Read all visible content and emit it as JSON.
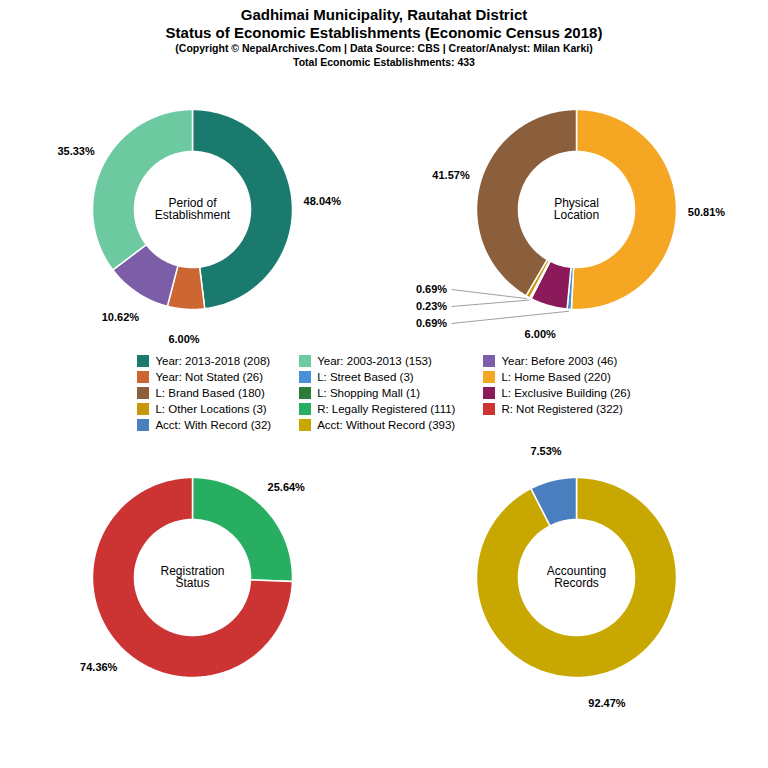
{
  "title": "Gadhimai Municipality, Rautahat District\nStatus of Economic Establishments (Economic Census 2018)",
  "subtitle": "(Copyright © NepalArchives.Com | Data Source: CBS | Creator/Analyst: Milan Karki)\nTotal Economic Establishments: 433",
  "legend_items": [
    {
      "label": "Year: 2013-2018 (208)",
      "color": "#1a7a6e"
    },
    {
      "label": "Year: Not Stated (26)",
      "color": "#cc6633"
    },
    {
      "label": "L: Brand Based (180)",
      "color": "#8b5e3c"
    },
    {
      "label": "L: Other Locations (3)",
      "color": "#c8960c"
    },
    {
      "label": "Acct: With Record (32)",
      "color": "#4a7fbf"
    },
    {
      "label": "Year: 2003-2013 (153)",
      "color": "#6dc9a0"
    },
    {
      "label": "L: Street Based (3)",
      "color": "#4a90d9"
    },
    {
      "label": "L: Shopping Mall (1)",
      "color": "#2d7d3a"
    },
    {
      "label": "R: Legally Registered (111)",
      "color": "#27ae60"
    },
    {
      "label": "Acct: Without Record (393)",
      "color": "#c8a800"
    },
    {
      "label": "Year: Before 2003 (46)",
      "color": "#7b5ea7"
    },
    {
      "label": "L: Home Based (220)",
      "color": "#f5a623"
    },
    {
      "label": "L: Exclusive Building (26)",
      "color": "#8b1a5a"
    },
    {
      "label": "R: Not Registered (322)",
      "color": "#cc3333"
    }
  ],
  "chart_data": [
    {
      "type": "pie",
      "title": "Period of\nEstablishment",
      "values": [
        48.04,
        6.0,
        10.62,
        35.33
      ],
      "value_labels": [
        "48.04%",
        "6.00%",
        "10.62%",
        "35.33%"
      ],
      "colors": [
        "#1a7a6e",
        "#cc6633",
        "#7b5ea7",
        "#6dc9a0"
      ],
      "data_labels": true
    },
    {
      "type": "pie",
      "title": "Physical\nLocation",
      "values": [
        50.81,
        0.69,
        6.0,
        0.23,
        0.69,
        41.57
      ],
      "value_labels": [
        "50.81%",
        "0.69%",
        "6.00%",
        "0.23%",
        "0.69%",
        "41.57%"
      ],
      "colors": [
        "#f5a623",
        "#4a90d9",
        "#8b1a5a",
        "#2d7d3a",
        "#c8960c",
        "#8b5e3c"
      ],
      "data_labels": true
    },
    {
      "type": "pie",
      "title": "Registration\nStatus",
      "values": [
        25.64,
        74.36
      ],
      "value_labels": [
        "25.64%",
        "74.36%"
      ],
      "colors": [
        "#27ae60",
        "#cc3333"
      ],
      "data_labels": true
    },
    {
      "type": "pie",
      "title": "Accounting\nRecords",
      "values": [
        92.47,
        7.53
      ],
      "value_labels": [
        "92.47%",
        "7.53%"
      ],
      "colors": [
        "#c8a800",
        "#4a7fbf"
      ],
      "data_labels": true
    }
  ]
}
